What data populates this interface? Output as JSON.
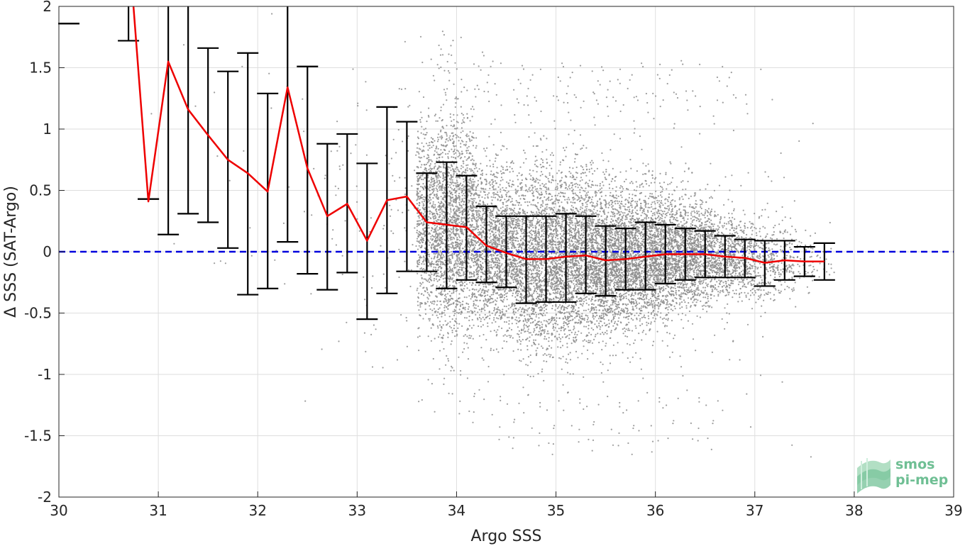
{
  "chart_data": {
    "type": "scatter",
    "xlabel": "Argo SSS",
    "ylabel": "Δ SSS (SAT-Argo)",
    "xlim": [
      30,
      39
    ],
    "ylim": [
      -2,
      2
    ],
    "xticks": [
      30,
      31,
      32,
      33,
      34,
      35,
      36,
      37,
      38,
      39
    ],
    "yticks": [
      -2,
      -1.5,
      -1,
      -0.5,
      0,
      0.5,
      1,
      1.5,
      2
    ],
    "grid": true,
    "reference_line": {
      "y": 0,
      "style": "dashed",
      "color": "#0000dd"
    },
    "scatter_color": "#8c8c8c",
    "mean_line_color": "#ee0000",
    "errorbar_color": "#000000",
    "bins": [
      {
        "x": 30.1,
        "lo": 1.86,
        "hi": 1.86
      },
      {
        "x": 30.7,
        "lo": 1.72,
        "hi": 2.0
      },
      {
        "x": 30.9,
        "lo": 0.43,
        "hi": 0.43
      },
      {
        "x": 31.1,
        "lo": 0.14,
        "hi": 2.0
      },
      {
        "x": 31.3,
        "lo": 0.31,
        "hi": 2.0
      },
      {
        "x": 31.5,
        "lo": 0.24,
        "hi": 1.66
      },
      {
        "x": 31.7,
        "lo": 0.03,
        "hi": 1.47
      },
      {
        "x": 31.9,
        "lo": -0.35,
        "hi": 1.62
      },
      {
        "x": 32.1,
        "lo": -0.3,
        "hi": 1.29
      },
      {
        "x": 32.3,
        "lo": 0.08,
        "hi": 2.0
      },
      {
        "x": 32.5,
        "lo": -0.18,
        "hi": 1.51
      },
      {
        "x": 32.7,
        "lo": -0.31,
        "hi": 0.88
      },
      {
        "x": 32.9,
        "lo": -0.17,
        "hi": 0.96
      },
      {
        "x": 33.1,
        "lo": -0.55,
        "hi": 0.72
      },
      {
        "x": 33.3,
        "lo": -0.34,
        "hi": 1.18
      },
      {
        "x": 33.5,
        "lo": -0.16,
        "hi": 1.06
      },
      {
        "x": 33.7,
        "lo": -0.16,
        "hi": 0.64
      },
      {
        "x": 33.9,
        "lo": -0.3,
        "hi": 0.73
      },
      {
        "x": 34.1,
        "lo": -0.23,
        "hi": 0.62
      },
      {
        "x": 34.3,
        "lo": -0.25,
        "hi": 0.37
      },
      {
        "x": 34.5,
        "lo": -0.29,
        "hi": 0.29
      },
      {
        "x": 34.7,
        "lo": -0.42,
        "hi": 0.29
      },
      {
        "x": 34.9,
        "lo": -0.41,
        "hi": 0.29
      },
      {
        "x": 35.1,
        "lo": -0.41,
        "hi": 0.31
      },
      {
        "x": 35.3,
        "lo": -0.34,
        "hi": 0.29
      },
      {
        "x": 35.5,
        "lo": -0.36,
        "hi": 0.21
      },
      {
        "x": 35.7,
        "lo": -0.31,
        "hi": 0.19
      },
      {
        "x": 35.9,
        "lo": -0.31,
        "hi": 0.24
      },
      {
        "x": 36.1,
        "lo": -0.26,
        "hi": 0.22
      },
      {
        "x": 36.3,
        "lo": -0.23,
        "hi": 0.19
      },
      {
        "x": 36.5,
        "lo": -0.21,
        "hi": 0.17
      },
      {
        "x": 36.7,
        "lo": -0.21,
        "hi": 0.13
      },
      {
        "x": 36.9,
        "lo": -0.21,
        "hi": 0.1
      },
      {
        "x": 37.1,
        "lo": -0.28,
        "hi": 0.09
      },
      {
        "x": 37.3,
        "lo": -0.23,
        "hi": 0.09
      },
      {
        "x": 37.5,
        "lo": -0.2,
        "hi": 0.04
      },
      {
        "x": 37.7,
        "lo": -0.23,
        "hi": 0.07
      }
    ],
    "mean_line": [
      {
        "x": 30.75,
        "y": 2.0
      },
      {
        "x": 30.9,
        "y": 0.41
      },
      {
        "x": 31.1,
        "y": 1.55
      },
      {
        "x": 31.3,
        "y": 1.16
      },
      {
        "x": 31.5,
        "y": 0.95
      },
      {
        "x": 31.7,
        "y": 0.75
      },
      {
        "x": 31.9,
        "y": 0.64
      },
      {
        "x": 32.1,
        "y": 0.49
      },
      {
        "x": 32.3,
        "y": 1.34
      },
      {
        "x": 32.5,
        "y": 0.68
      },
      {
        "x": 32.7,
        "y": 0.29
      },
      {
        "x": 32.9,
        "y": 0.39
      },
      {
        "x": 33.1,
        "y": 0.09
      },
      {
        "x": 33.3,
        "y": 0.42
      },
      {
        "x": 33.5,
        "y": 0.45
      },
      {
        "x": 33.7,
        "y": 0.24
      },
      {
        "x": 33.9,
        "y": 0.22
      },
      {
        "x": 34.1,
        "y": 0.2
      },
      {
        "x": 34.3,
        "y": 0.05
      },
      {
        "x": 34.5,
        "y": -0.01
      },
      {
        "x": 34.7,
        "y": -0.06
      },
      {
        "x": 34.9,
        "y": -0.06
      },
      {
        "x": 35.1,
        "y": -0.04
      },
      {
        "x": 35.3,
        "y": -0.03
      },
      {
        "x": 35.5,
        "y": -0.07
      },
      {
        "x": 35.7,
        "y": -0.06
      },
      {
        "x": 35.9,
        "y": -0.04
      },
      {
        "x": 36.1,
        "y": -0.02
      },
      {
        "x": 36.3,
        "y": -0.02
      },
      {
        "x": 36.5,
        "y": -0.02
      },
      {
        "x": 36.7,
        "y": -0.04
      },
      {
        "x": 36.9,
        "y": -0.05
      },
      {
        "x": 37.1,
        "y": -0.09
      },
      {
        "x": 37.3,
        "y": -0.07
      },
      {
        "x": 37.5,
        "y": -0.08
      },
      {
        "x": 37.7,
        "y": -0.08
      }
    ],
    "scatter_density": [
      {
        "x": 30.1,
        "n": 0,
        "sd": 0.4,
        "mean": 1.0
      },
      {
        "x": 30.5,
        "n": 0,
        "sd": 0.4,
        "mean": 1.0
      },
      {
        "x": 30.9,
        "n": 1,
        "sd": 0.6,
        "mean": 0.5
      },
      {
        "x": 31.1,
        "n": 2,
        "sd": 0.7,
        "mean": 1.0
      },
      {
        "x": 31.3,
        "n": 2,
        "sd": 0.7,
        "mean": 1.0
      },
      {
        "x": 31.5,
        "n": 3,
        "sd": 0.6,
        "mean": 0.9
      },
      {
        "x": 31.7,
        "n": 3,
        "sd": 0.6,
        "mean": 0.7
      },
      {
        "x": 31.9,
        "n": 4,
        "sd": 0.8,
        "mean": 0.6
      },
      {
        "x": 32.1,
        "n": 5,
        "sd": 0.7,
        "mean": 0.5
      },
      {
        "x": 32.3,
        "n": 6,
        "sd": 0.8,
        "mean": 1.0
      },
      {
        "x": 32.5,
        "n": 8,
        "sd": 0.7,
        "mean": 0.6
      },
      {
        "x": 32.7,
        "n": 12,
        "sd": 0.55,
        "mean": 0.3
      },
      {
        "x": 32.9,
        "n": 16,
        "sd": 0.55,
        "mean": 0.38
      },
      {
        "x": 33.1,
        "n": 20,
        "sd": 0.6,
        "mean": 0.1
      },
      {
        "x": 33.3,
        "n": 24,
        "sd": 0.7,
        "mean": 0.4
      },
      {
        "x": 33.5,
        "n": 40,
        "sd": 0.55,
        "mean": 0.44
      },
      {
        "x": 33.7,
        "n": 700,
        "sd": 0.42,
        "mean": 0.24
      },
      {
        "x": 33.9,
        "n": 1000,
        "sd": 0.46,
        "mean": 0.22
      },
      {
        "x": 34.1,
        "n": 900,
        "sd": 0.42,
        "mean": 0.2
      },
      {
        "x": 34.3,
        "n": 800,
        "sd": 0.33,
        "mean": 0.05
      },
      {
        "x": 34.5,
        "n": 800,
        "sd": 0.32,
        "mean": -0.01
      },
      {
        "x": 34.7,
        "n": 850,
        "sd": 0.37,
        "mean": -0.06
      },
      {
        "x": 34.9,
        "n": 900,
        "sd": 0.37,
        "mean": -0.06
      },
      {
        "x": 35.1,
        "n": 950,
        "sd": 0.37,
        "mean": -0.04
      },
      {
        "x": 35.3,
        "n": 950,
        "sd": 0.33,
        "mean": -0.03
      },
      {
        "x": 35.5,
        "n": 1000,
        "sd": 0.3,
        "mean": -0.07
      },
      {
        "x": 35.7,
        "n": 950,
        "sd": 0.27,
        "mean": -0.06
      },
      {
        "x": 35.9,
        "n": 900,
        "sd": 0.28,
        "mean": -0.04
      },
      {
        "x": 36.1,
        "n": 850,
        "sd": 0.25,
        "mean": -0.02
      },
      {
        "x": 36.3,
        "n": 750,
        "sd": 0.22,
        "mean": -0.02
      },
      {
        "x": 36.5,
        "n": 600,
        "sd": 0.2,
        "mean": -0.02
      },
      {
        "x": 36.7,
        "n": 450,
        "sd": 0.18,
        "mean": -0.04
      },
      {
        "x": 36.9,
        "n": 320,
        "sd": 0.16,
        "mean": -0.05
      },
      {
        "x": 37.1,
        "n": 220,
        "sd": 0.18,
        "mean": -0.09
      },
      {
        "x": 37.3,
        "n": 140,
        "sd": 0.16,
        "mean": -0.07
      },
      {
        "x": 37.5,
        "n": 60,
        "sd": 0.12,
        "mean": -0.08
      },
      {
        "x": 37.7,
        "n": 20,
        "sd": 0.12,
        "mean": -0.08
      }
    ]
  },
  "logo": {
    "line1": "smos",
    "line2": "pi-mep",
    "color": "#6fbf94"
  }
}
